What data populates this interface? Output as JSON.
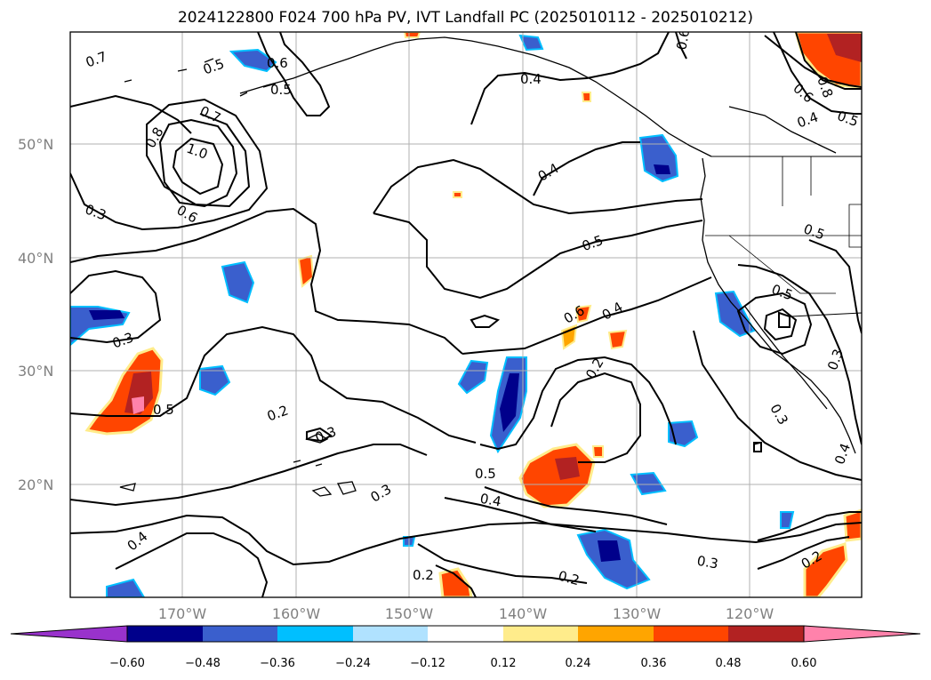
{
  "title": "2024122800 F024 700 hPa PV, IVT Landfall PC (2025010112 - 2025010212)",
  "lat_labels": [
    "50°N",
    "40°N",
    "30°N",
    "20°N"
  ],
  "lon_labels": [
    "170°W",
    "160°W",
    "150°W",
    "140°W",
    "130°W",
    "120°W"
  ],
  "colorbar": {
    "colors": [
      "#9932CC",
      "#00008B",
      "#3A5FCD",
      "#00BFFF",
      "#B0E2FF",
      "#FFFFFF",
      "#FFEC8B",
      "#FFA500",
      "#FF4500",
      "#B22222",
      "#FF82AB"
    ],
    "tick_labels": [
      "−0.60",
      "−0.48",
      "−0.36",
      "−0.24",
      "−0.12",
      "0.12",
      "0.24",
      "0.36",
      "0.48",
      "0.60"
    ]
  },
  "contour_labels": [
    "0.7",
    "0.5",
    "0.6",
    "0.5",
    "0.4",
    "0.6",
    "0.7",
    "0.8",
    "1.0",
    "0.6",
    "0.3",
    "0.4",
    "0.5",
    "0.4",
    "0.5",
    "0.3",
    "0.5",
    "0.5",
    "0.6",
    "0.4",
    "0.2",
    "0.2",
    "0.3",
    "0.5",
    "0.4",
    "0.3",
    "0.4",
    "0.3",
    "0.4",
    "0.3",
    "0.2",
    "0.2",
    "0.3",
    "0.2",
    "0.8",
    "0.6",
    "0.5"
  ]
}
